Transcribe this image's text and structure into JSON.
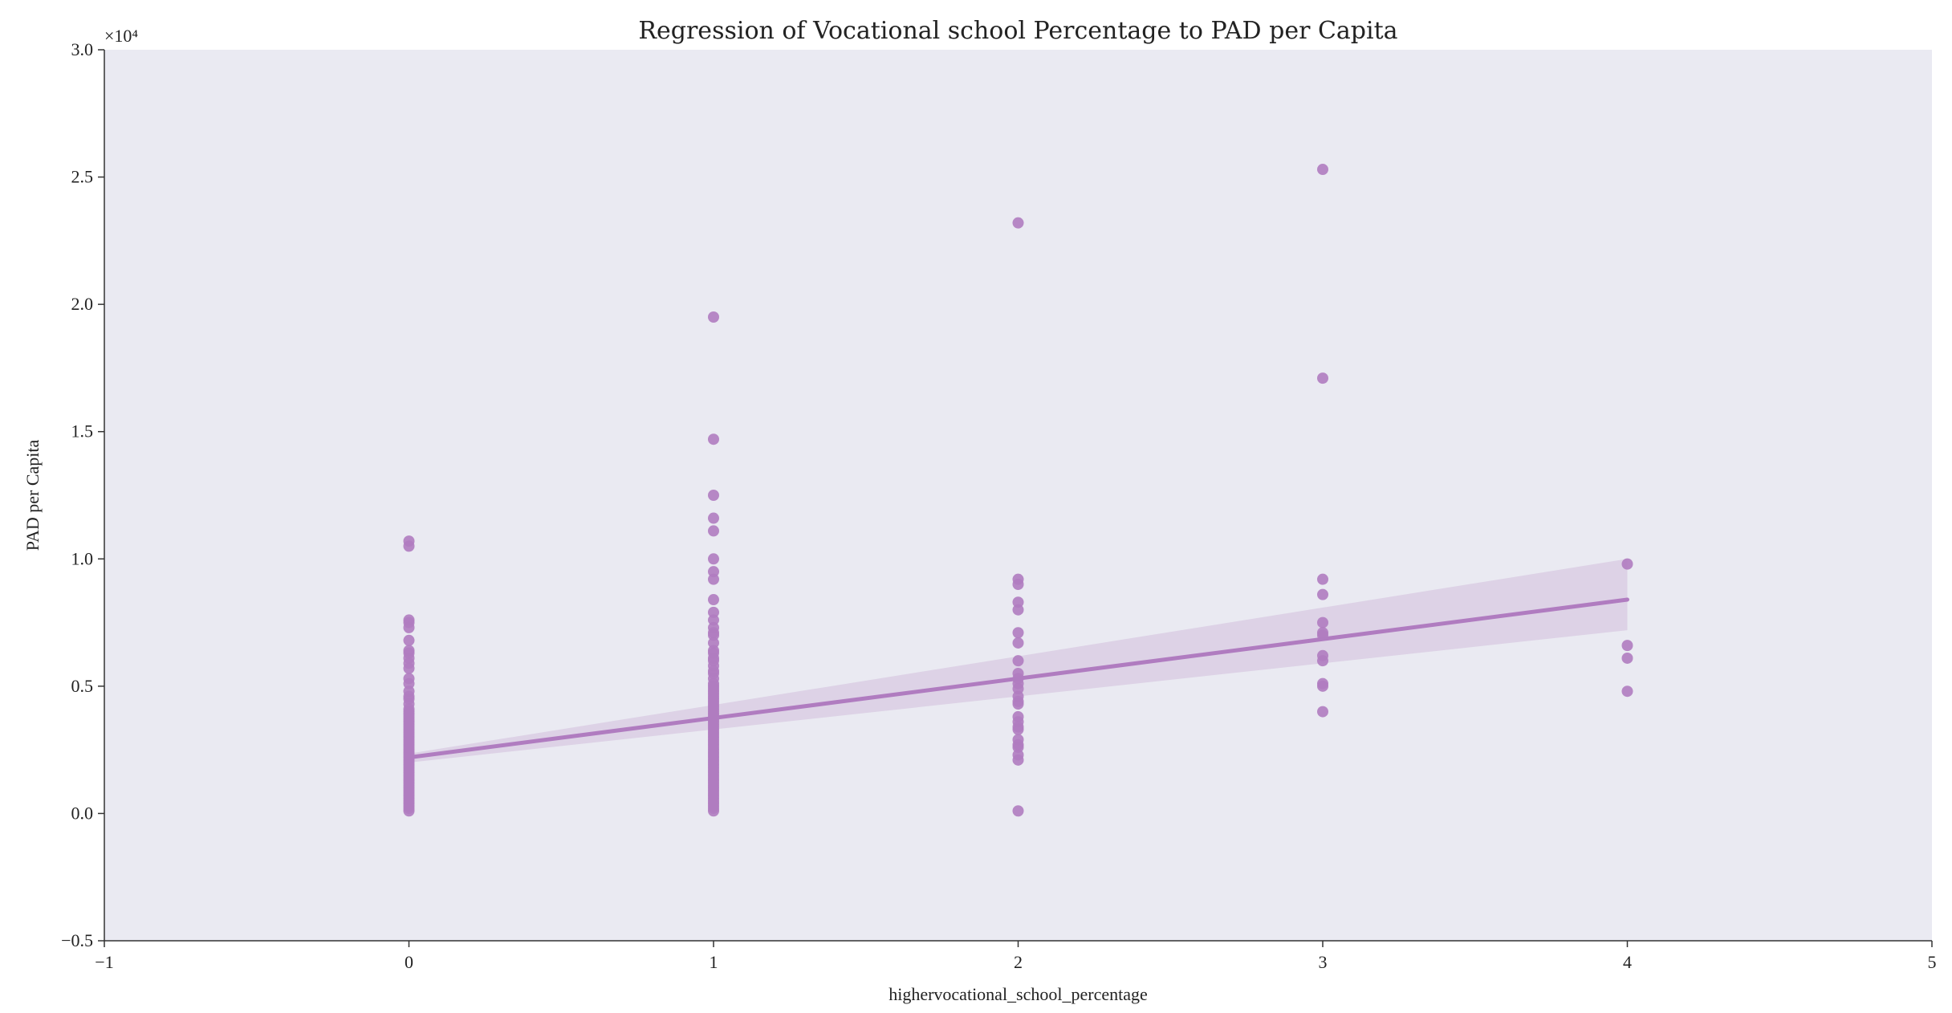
{
  "chart_data": {
    "type": "scatter",
    "title": "Regression of Vocational school Percentage to PAD per Capita",
    "xlabel": "highervocational_school_percentage",
    "ylabel": "PAD per Capita",
    "xlim": [
      -1,
      5
    ],
    "ylim": [
      -0.5,
      3.0
    ],
    "y_multiplier_label": "×10⁴",
    "x_ticks": [
      -1,
      0,
      1,
      2,
      3,
      4,
      5
    ],
    "x_tick_labels": [
      "−1",
      "0",
      "1",
      "2",
      "3",
      "4",
      "5"
    ],
    "y_ticks": [
      -0.5,
      0.0,
      0.5,
      1.0,
      1.5,
      2.0,
      2.5,
      3.0
    ],
    "y_tick_labels": [
      "−0.5",
      "0.0",
      "0.5",
      "1.0",
      "1.5",
      "2.0",
      "2.5",
      "3.0"
    ],
    "grid": false,
    "colors": {
      "plot_background": "#eaeaf2",
      "points": "#b07cc0",
      "line": "#b07cc0",
      "band": "#d3c1dd",
      "axis": "#333333"
    },
    "points": {
      "x_values": [
        0,
        1,
        2,
        3,
        4
      ],
      "y_values_by_x": [
        [
          1.07,
          1.05,
          0.76,
          0.75,
          0.73,
          0.68,
          0.64,
          0.63,
          0.61,
          0.59,
          0.57,
          0.53,
          0.51,
          0.48,
          0.46,
          0.45,
          0.43,
          0.41,
          0.4,
          0.39,
          0.38,
          0.37,
          0.36,
          0.35,
          0.34,
          0.33,
          0.32,
          0.31,
          0.3,
          0.29,
          0.28,
          0.27,
          0.26,
          0.25,
          0.24,
          0.23,
          0.22,
          0.21,
          0.2,
          0.19,
          0.18,
          0.17,
          0.16,
          0.15,
          0.14,
          0.13,
          0.12,
          0.11,
          0.1,
          0.09,
          0.08,
          0.07,
          0.06,
          0.05,
          0.04,
          0.03,
          0.02,
          0.01
        ],
        [
          1.95,
          1.47,
          1.25,
          1.16,
          1.11,
          1.0,
          0.95,
          0.92,
          0.84,
          0.79,
          0.76,
          0.73,
          0.71,
          0.7,
          0.67,
          0.64,
          0.63,
          0.61,
          0.6,
          0.58,
          0.56,
          0.55,
          0.53,
          0.51,
          0.5,
          0.49,
          0.48,
          0.47,
          0.46,
          0.45,
          0.44,
          0.43,
          0.42,
          0.41,
          0.4,
          0.39,
          0.38,
          0.37,
          0.36,
          0.35,
          0.34,
          0.33,
          0.32,
          0.31,
          0.3,
          0.29,
          0.28,
          0.27,
          0.26,
          0.25,
          0.24,
          0.23,
          0.22,
          0.21,
          0.2,
          0.19,
          0.18,
          0.17,
          0.16,
          0.15,
          0.14,
          0.13,
          0.12,
          0.11,
          0.1,
          0.09,
          0.08,
          0.07,
          0.06,
          0.05,
          0.04,
          0.03,
          0.02,
          0.01
        ],
        [
          2.32,
          0.92,
          0.9,
          0.83,
          0.8,
          0.71,
          0.67,
          0.6,
          0.55,
          0.53,
          0.51,
          0.49,
          0.46,
          0.44,
          0.43,
          0.38,
          0.36,
          0.34,
          0.33,
          0.29,
          0.27,
          0.26,
          0.23,
          0.21,
          0.01
        ],
        [
          2.53,
          1.71,
          0.92,
          0.86,
          0.75,
          0.71,
          0.7,
          0.62,
          0.6,
          0.51,
          0.5,
          0.4
        ],
        [
          0.98,
          0.66,
          0.61,
          0.48
        ]
      ]
    },
    "regression": {
      "x_range": [
        0,
        4
      ],
      "y_start": 0.22,
      "y_end": 0.84,
      "ci_at_start": [
        0.2,
        0.235
      ],
      "ci_at_end": [
        0.72,
        1.0
      ]
    }
  }
}
